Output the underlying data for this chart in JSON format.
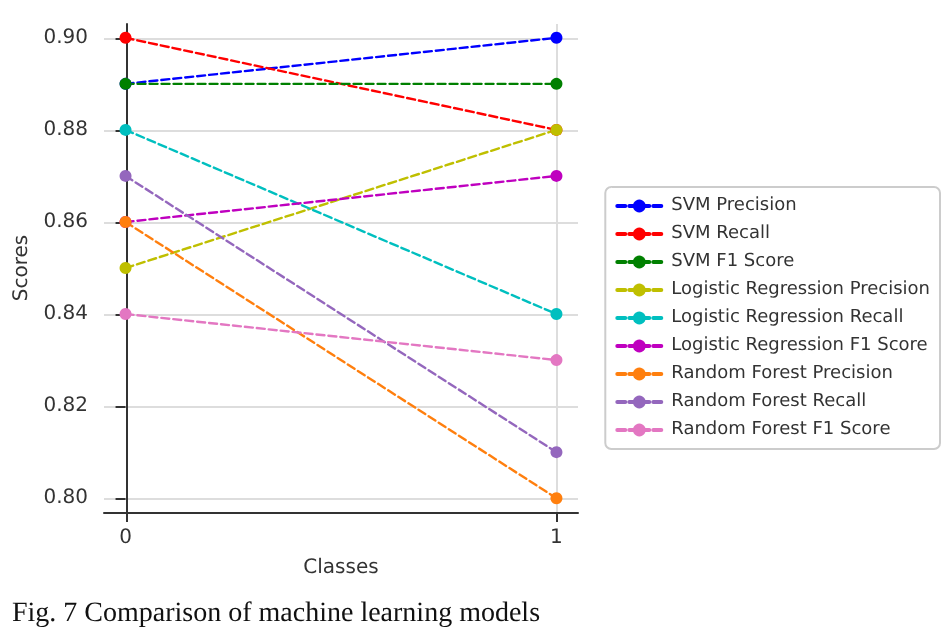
{
  "chart_data": {
    "type": "line",
    "xlabel": "Classes",
    "ylabel": "Scores",
    "annotations": [
      "Fig. 7 Comparison of machine learning models"
    ],
    "x": [
      0,
      1
    ],
    "xlim": [
      -0.05,
      1.05
    ],
    "xticks": [
      0,
      1
    ],
    "ylim": [
      0.797,
      0.903
    ],
    "yticks": [
      {
        "value": 0.8,
        "label": "0.80"
      },
      0.82,
      0.84,
      0.86,
      0.88,
      {
        "value": 0.9,
        "label": "0.90"
      }
    ],
    "grid": true,
    "legend": "right",
    "marker": "circle",
    "line_style": "dashed",
    "series": [
      {
        "name": "SVM Precision",
        "color": "#0000ff",
        "values": [
          0.89,
          0.9
        ]
      },
      {
        "name": "SVM Recall",
        "color": "#ff0000",
        "values": [
          0.9,
          0.88
        ]
      },
      {
        "name": "SVM F1 Score",
        "color": "#008000",
        "values": [
          0.89,
          0.89
        ]
      },
      {
        "name": "Logistic Regression Precision",
        "color": "#bfbf00",
        "values": [
          0.85,
          0.88
        ]
      },
      {
        "name": "Logistic Regression Recall",
        "color": "#00bfbf",
        "values": [
          0.88,
          0.84
        ]
      },
      {
        "name": "Logistic Regression F1 Score",
        "color": "#bf00bf",
        "values": [
          0.86,
          0.87
        ]
      },
      {
        "name": "Random Forest Precision",
        "color": "#ff7f0e",
        "values": [
          0.86,
          0.8
        ]
      },
      {
        "name": "Random Forest Recall",
        "color": "#9467bd",
        "values": [
          0.87,
          0.81
        ]
      },
      {
        "name": "Random Forest F1 Score",
        "color": "#e377c2",
        "values": [
          0.84,
          0.83
        ]
      }
    ]
  }
}
